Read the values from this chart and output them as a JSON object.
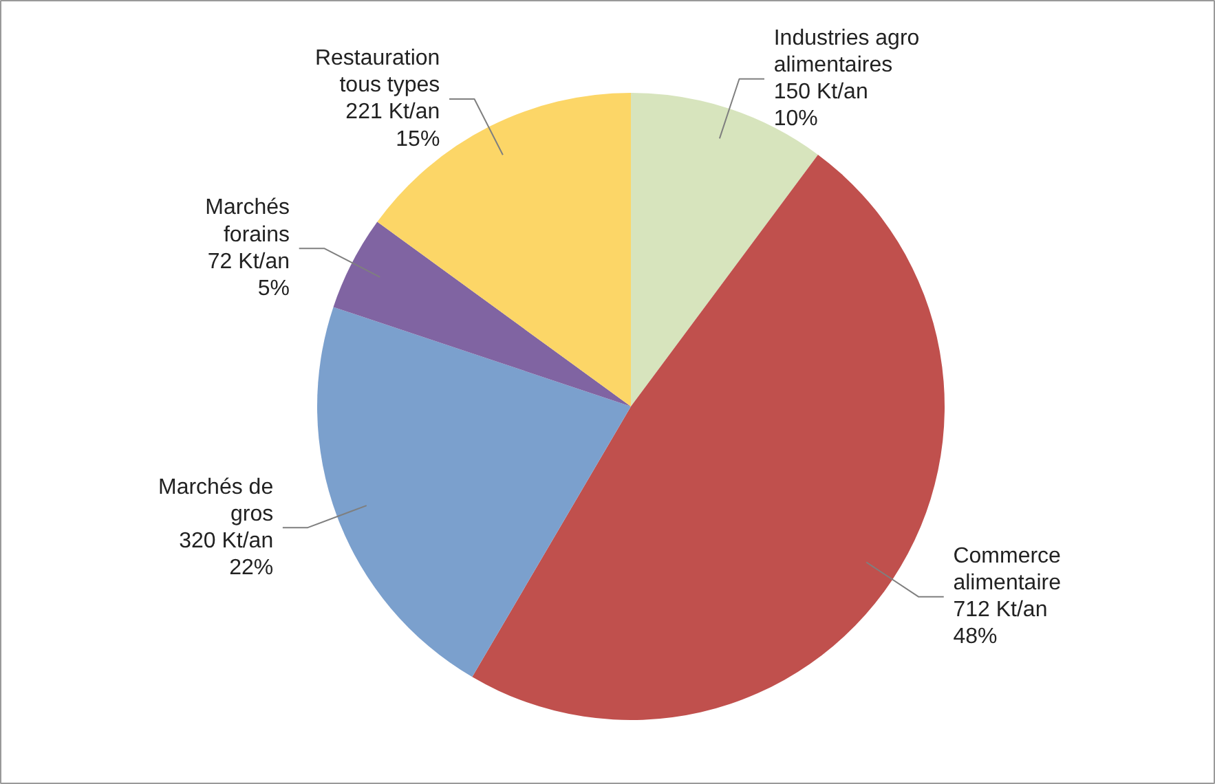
{
  "chart_data": {
    "type": "pie",
    "categories": [
      "Industries agro\nalimentaires",
      "Commerce\nalimentaire",
      "Marchés de\ngros",
      "Marchés\nforains",
      "Restauration\ntous types"
    ],
    "values": [
      150,
      712,
      320,
      72,
      221
    ],
    "colors": [
      "#d7e4bd",
      "#c0504d",
      "#7ba0cd",
      "#8064a2",
      "#fcd667"
    ],
    "value_labels": [
      "150 Kt/an\n10%",
      "712 Kt/an\n48%",
      "320 Kt/an\n22%",
      "72 Kt/an\n5%",
      "221 Kt/an\n15%"
    ]
  }
}
